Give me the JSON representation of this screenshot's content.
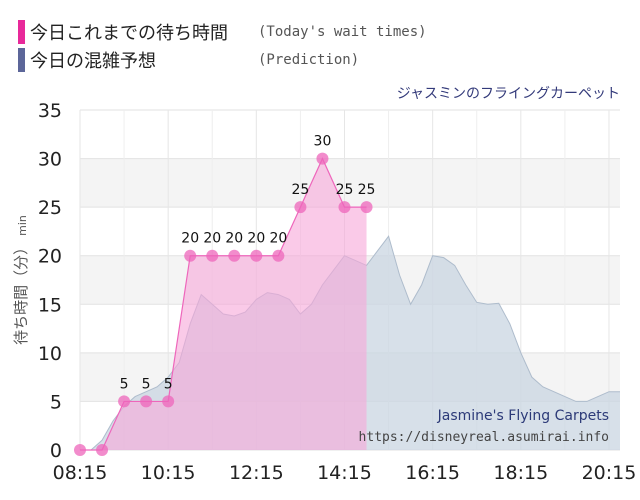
{
  "legend": {
    "today_label": "今日これまでの待ち時間",
    "today_note": "(Today's wait times)",
    "prediction_label": "今日の混雑予想",
    "prediction_note": "(Prediction)"
  },
  "colors": {
    "today_swatch": "#e8299a",
    "prediction_swatch": "#5c6699",
    "today_fill": "#f7a6d8",
    "today_line": "#ee66bb",
    "today_marker": "#ee66bb",
    "prediction_fill": "#c9d5e2",
    "prediction_line": "#aebccc",
    "band_light": "#f4f4f4",
    "band_white": "#ffffff"
  },
  "chart_data": {
    "type": "area",
    "title": "ジャスミンのフライングカーペット",
    "ylabel": "待ち時間（分）",
    "ylabel_unit": "min",
    "xlabel": "",
    "ylim": [
      0,
      35
    ],
    "yticks": [
      0,
      5,
      10,
      15,
      20,
      25,
      30,
      35
    ],
    "xticks": [
      "08:15",
      "10:15",
      "12:15",
      "14:15",
      "16:15",
      "18:15",
      "20:15"
    ],
    "grid": true,
    "series": [
      {
        "name": "今日これまでの待ち時間",
        "x": [
          "08:15",
          "08:30",
          "08:45",
          "09:00",
          "09:15",
          "09:30",
          "09:45",
          "10:00",
          "10:15",
          "10:30",
          "10:45",
          "11:00",
          "11:15",
          "11:30",
          "11:45",
          "12:00",
          "12:15",
          "12:30",
          "12:45",
          "13:00",
          "13:15",
          "13:30",
          "13:45",
          "14:00",
          "14:15",
          "14:30",
          "14:45"
        ],
        "values": [
          0,
          null,
          0,
          null,
          5,
          null,
          5,
          null,
          5,
          null,
          20,
          null,
          20,
          null,
          20,
          null,
          20,
          null,
          20,
          null,
          25,
          null,
          30,
          null,
          25,
          null,
          25
        ],
        "data_labels": [
          "",
          "",
          "",
          "",
          "5",
          "",
          "5",
          "",
          "5",
          "",
          "20",
          "",
          "20",
          "",
          "20",
          "",
          "20",
          "",
          "20",
          "",
          "25",
          "",
          "30",
          "",
          "25",
          "",
          "25"
        ]
      },
      {
        "name": "今日の混雑予想",
        "x": [
          "08:30",
          "08:45",
          "09:00",
          "09:15",
          "09:30",
          "09:45",
          "10:00",
          "10:15",
          "10:30",
          "10:45",
          "11:00",
          "11:15",
          "11:30",
          "11:45",
          "12:00",
          "12:15",
          "12:30",
          "12:45",
          "13:00",
          "13:15",
          "13:30",
          "13:45",
          "14:00",
          "14:15",
          "14:30",
          "14:45",
          "15:00",
          "15:15",
          "15:30",
          "15:45",
          "16:00",
          "16:15",
          "16:30",
          "16:45",
          "17:00",
          "17:15",
          "17:30",
          "17:45",
          "18:00",
          "18:15",
          "18:30",
          "18:45",
          "19:00",
          "19:15",
          "19:30",
          "19:45",
          "20:00",
          "20:15",
          "20:30"
        ],
        "values": [
          0,
          1,
          3,
          4.5,
          5.5,
          6,
          6.5,
          7.5,
          9,
          13,
          16,
          15,
          14,
          13.8,
          14.2,
          15.5,
          16.2,
          16,
          15.5,
          14,
          15,
          17,
          18.5,
          20,
          19.5,
          19,
          20.5,
          22,
          18,
          15,
          17,
          20,
          19.8,
          19,
          17,
          15.2,
          15,
          15.1,
          13,
          10,
          7.5,
          6.5,
          6,
          5.5,
          5,
          5,
          5.5,
          6,
          6
        ]
      }
    ]
  },
  "watermark": {
    "name": "Jasmine's Flying Carpets",
    "url": "https://disneyreal.asumirai.info"
  }
}
